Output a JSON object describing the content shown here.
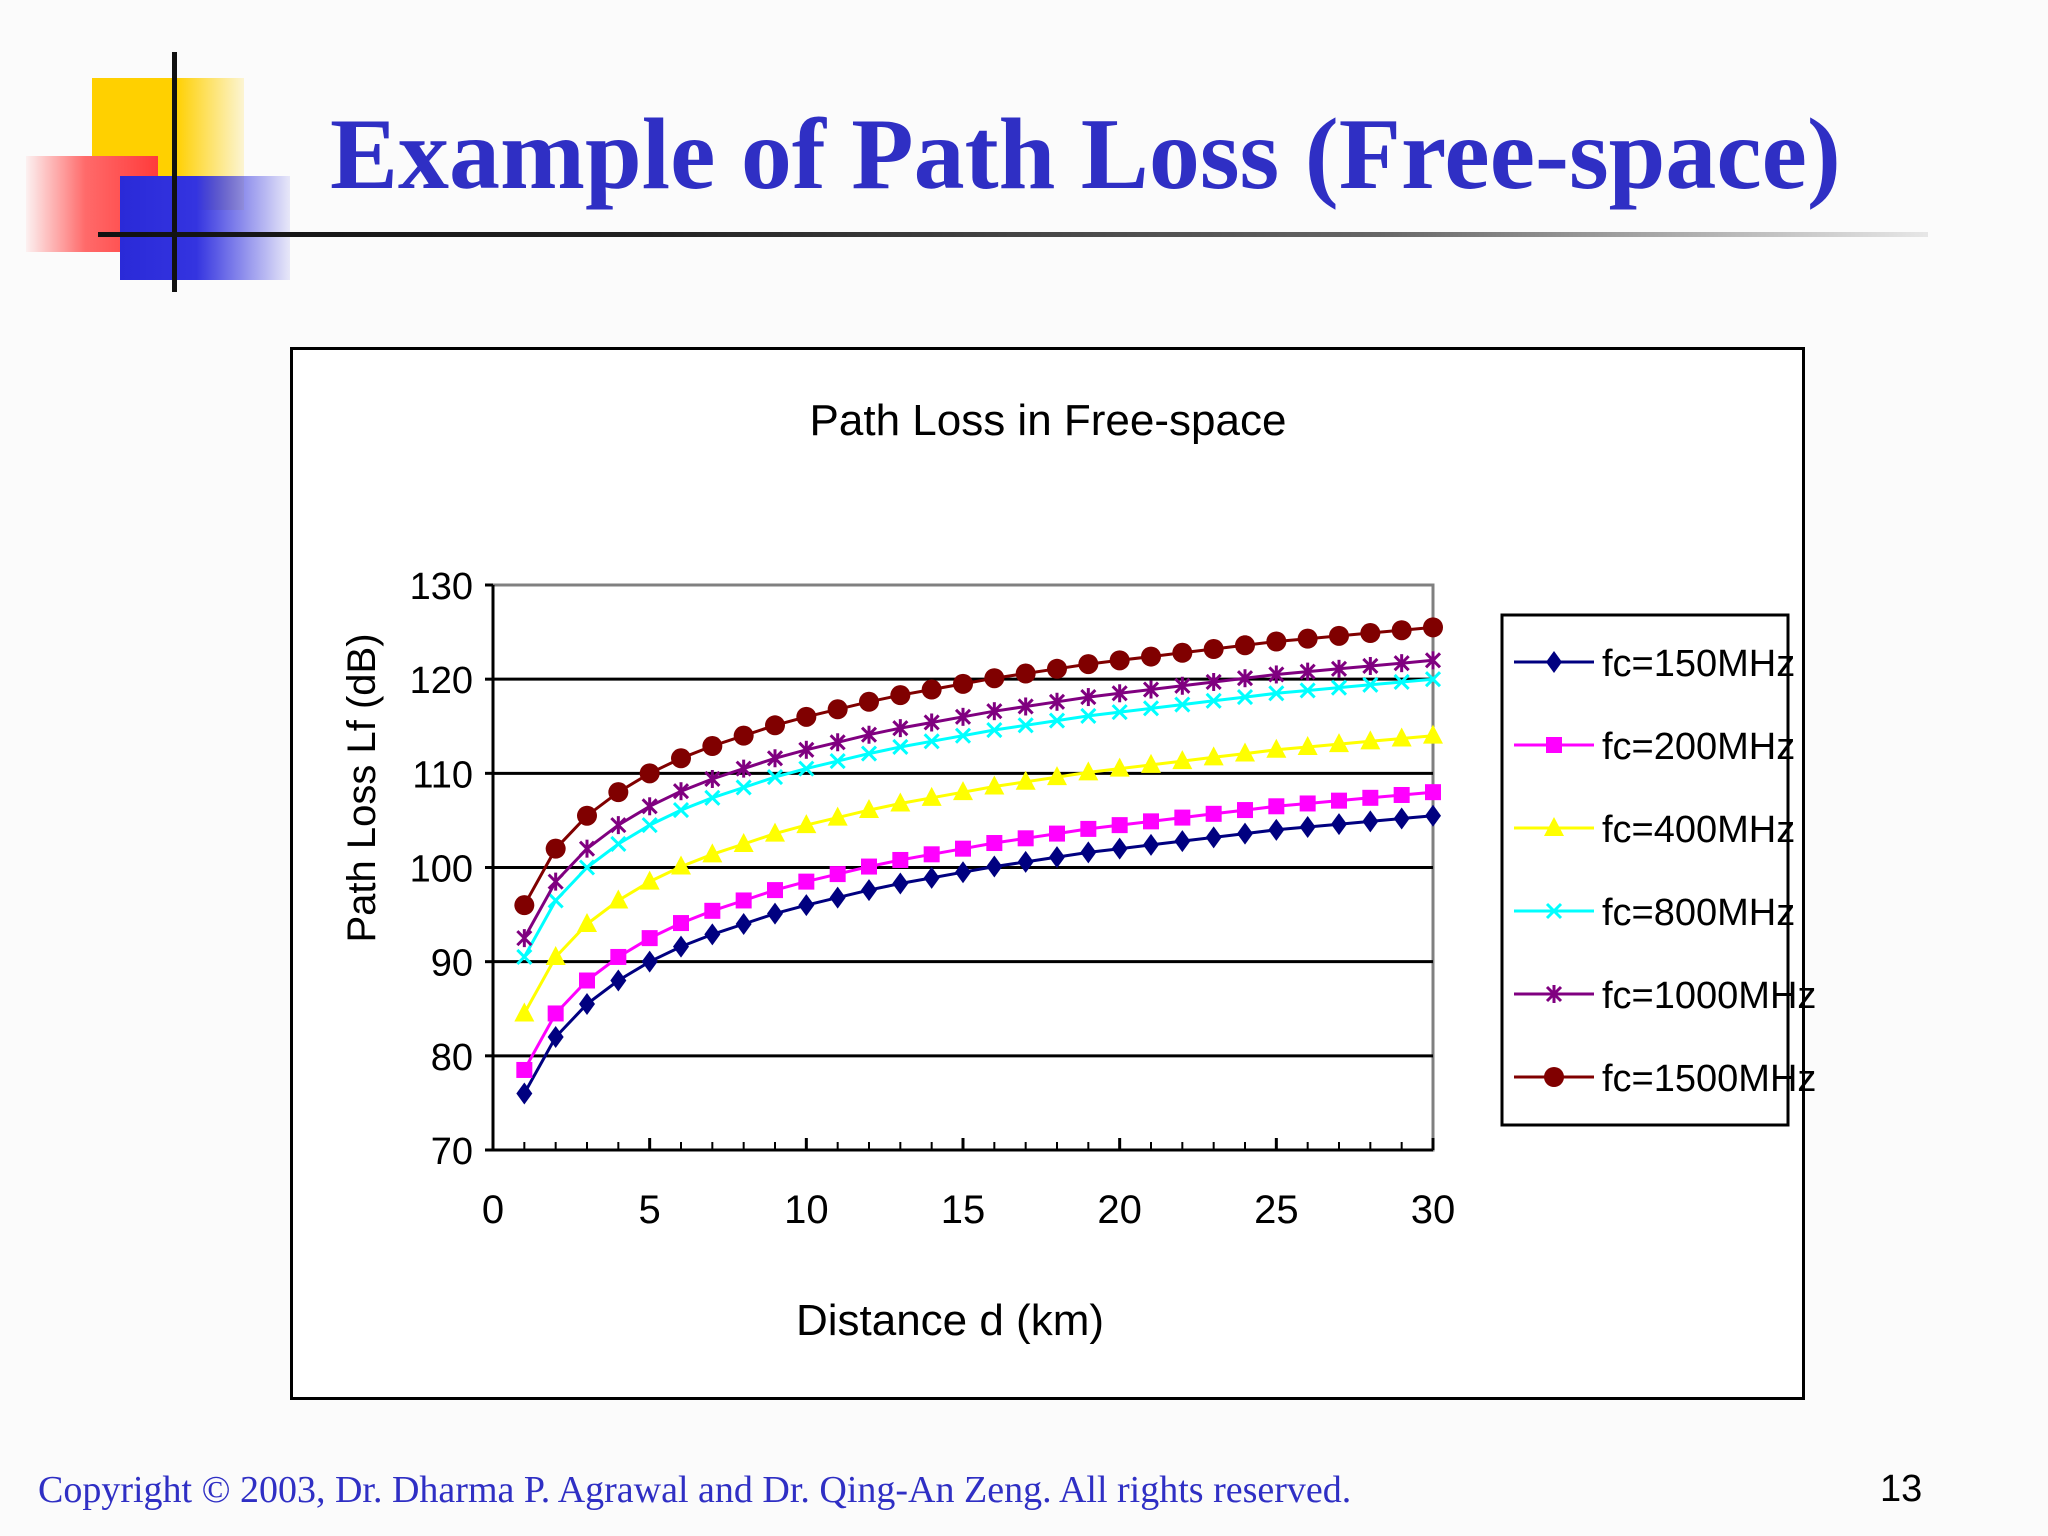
{
  "slide": {
    "title": "Example of Path Loss (Free-space)",
    "footer": "Copyright © 2003, Dr. Dharma P. Agrawal and Dr. Qing-An Zeng. All rights reserved.",
    "page_number": "13",
    "colors": {
      "title": "#2f2fc4",
      "footer": "#2f2fc4"
    }
  },
  "chart_data": {
    "type": "line",
    "title": "Path Loss in Free-space",
    "xlabel": "Distance d (km)",
    "ylabel": "Path Loss Lf (dB)",
    "xlim": [
      0,
      30
    ],
    "ylim": [
      70,
      130
    ],
    "x_ticks": [
      "0",
      "5",
      "10",
      "15",
      "20",
      "25",
      "30"
    ],
    "y_ticks": [
      "70",
      "80",
      "90",
      "100",
      "110",
      "120",
      "130"
    ],
    "grid": "horizontal",
    "legend_position": "right",
    "x": [
      1,
      2,
      3,
      4,
      5,
      6,
      7,
      8,
      9,
      10,
      11,
      12,
      13,
      14,
      15,
      16,
      17,
      18,
      19,
      20,
      21,
      22,
      23,
      24,
      25,
      26,
      27,
      28,
      29,
      30
    ],
    "series": [
      {
        "name": "fc=150MHz",
        "color": "#000080",
        "marker": "diamond",
        "values": [
          76.0,
          82.0,
          85.5,
          88.0,
          90.0,
          91.6,
          92.9,
          94.0,
          95.1,
          96.0,
          96.8,
          97.6,
          98.3,
          98.9,
          99.5,
          100.1,
          100.6,
          101.1,
          101.6,
          102.0,
          102.4,
          102.8,
          103.2,
          103.6,
          104.0,
          104.3,
          104.6,
          104.9,
          105.2,
          105.5
        ]
      },
      {
        "name": "fc=200MHz",
        "color": "#ff00ff",
        "marker": "square",
        "values": [
          78.5,
          84.5,
          88.0,
          90.5,
          92.5,
          94.1,
          95.4,
          96.5,
          97.6,
          98.5,
          99.3,
          100.1,
          100.8,
          101.4,
          102.0,
          102.6,
          103.1,
          103.6,
          104.1,
          104.5,
          104.9,
          105.3,
          105.7,
          106.1,
          106.5,
          106.8,
          107.1,
          107.4,
          107.7,
          108.0
        ]
      },
      {
        "name": "fc=400MHz",
        "color": "#ffff00",
        "marker": "triangle",
        "values": [
          84.5,
          90.5,
          94.0,
          96.5,
          98.5,
          100.1,
          101.4,
          102.5,
          103.6,
          104.5,
          105.3,
          106.1,
          106.8,
          107.4,
          108.0,
          108.6,
          109.1,
          109.6,
          110.1,
          110.5,
          110.9,
          111.3,
          111.7,
          112.1,
          112.5,
          112.8,
          113.1,
          113.4,
          113.7,
          114.0
        ]
      },
      {
        "name": "fc=800MHz",
        "color": "#00ffff",
        "marker": "x",
        "values": [
          90.5,
          96.5,
          100.0,
          102.5,
          104.5,
          106.1,
          107.4,
          108.5,
          109.6,
          110.5,
          111.3,
          112.1,
          112.8,
          113.4,
          114.0,
          114.6,
          115.1,
          115.6,
          116.1,
          116.5,
          116.9,
          117.3,
          117.7,
          118.1,
          118.5,
          118.8,
          119.1,
          119.4,
          119.7,
          120.0
        ]
      },
      {
        "name": "fc=1000MHz",
        "color": "#800080",
        "marker": "star",
        "values": [
          92.5,
          98.5,
          102.0,
          104.5,
          106.5,
          108.1,
          109.4,
          110.5,
          111.6,
          112.5,
          113.3,
          114.1,
          114.8,
          115.4,
          116.0,
          116.6,
          117.1,
          117.6,
          118.1,
          118.5,
          118.9,
          119.3,
          119.7,
          120.1,
          120.5,
          120.8,
          121.1,
          121.4,
          121.7,
          122.0
        ]
      },
      {
        "name": "fc=1500MHz",
        "color": "#800000",
        "marker": "circle",
        "values": [
          96.0,
          102.0,
          105.5,
          108.0,
          110.0,
          111.6,
          112.9,
          114.0,
          115.1,
          116.0,
          116.8,
          117.6,
          118.3,
          118.9,
          119.5,
          120.1,
          120.6,
          121.1,
          121.6,
          122.0,
          122.4,
          122.8,
          123.2,
          123.6,
          124.0,
          124.3,
          124.6,
          124.9,
          125.2,
          125.5
        ]
      }
    ]
  }
}
